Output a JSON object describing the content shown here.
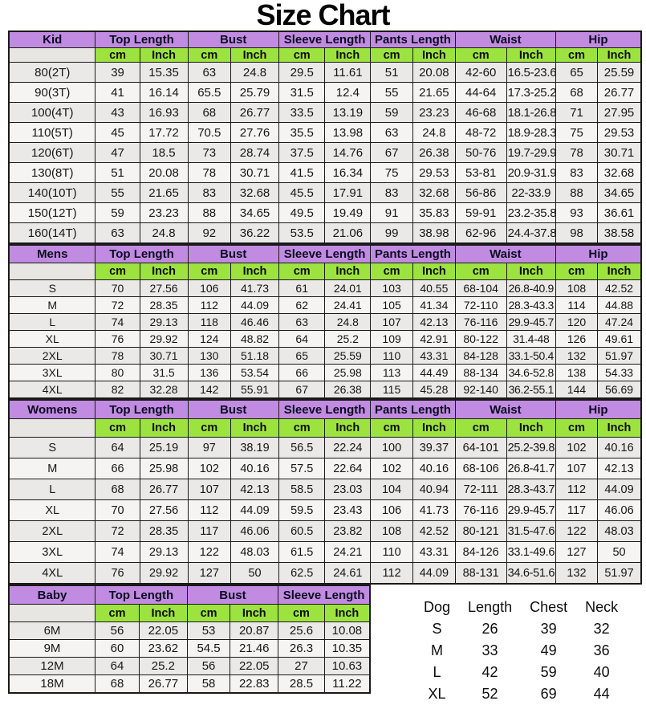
{
  "title": "Size Chart",
  "colors": {
    "header_purple": "#c18be2",
    "units_green": "#9de33f",
    "row_light": "#f5f4f2",
    "row_dark": "#eae9e7",
    "label_gray": "#e8e6e3",
    "grid_border": "#1a1a1a"
  },
  "chart_data": {
    "type": "table",
    "title": "Size Chart",
    "units": [
      "cm",
      "Inch"
    ],
    "sections": [
      {
        "id": "kid",
        "label": "Kid",
        "groups": [
          "Top Length",
          "Bust",
          "Sleeve Length",
          "Pants Length",
          "Waist",
          "Hip"
        ],
        "rows": [
          {
            "size": "80(2T)",
            "values": [
              "39",
              "15.35",
              "63",
              "24.8",
              "29.5",
              "11.61",
              "51",
              "20.08",
              "42-60",
              "16.5-23.6",
              "65",
              "25.59"
            ]
          },
          {
            "size": "90(3T)",
            "values": [
              "41",
              "16.14",
              "65.5",
              "25.79",
              "31.5",
              "12.4",
              "55",
              "21.65",
              "44-64",
              "17.3-25.2",
              "68",
              "26.77"
            ]
          },
          {
            "size": "100(4T)",
            "values": [
              "43",
              "16.93",
              "68",
              "26.77",
              "33.5",
              "13.19",
              "59",
              "23.23",
              "46-68",
              "18.1-26.8",
              "71",
              "27.95"
            ]
          },
          {
            "size": "110(5T)",
            "values": [
              "45",
              "17.72",
              "70.5",
              "27.76",
              "35.5",
              "13.98",
              "63",
              "24.8",
              "48-72",
              "18.9-28.3",
              "75",
              "29.53"
            ]
          },
          {
            "size": "120(6T)",
            "values": [
              "47",
              "18.5",
              "73",
              "28.74",
              "37.5",
              "14.76",
              "67",
              "26.38",
              "50-76",
              "19.7-29.9",
              "78",
              "30.71"
            ]
          },
          {
            "size": "130(8T)",
            "values": [
              "51",
              "20.08",
              "78",
              "30.71",
              "41.5",
              "16.34",
              "75",
              "29.53",
              "53-81",
              "20.9-31.9",
              "83",
              "32.68"
            ]
          },
          {
            "size": "140(10T)",
            "values": [
              "55",
              "21.65",
              "83",
              "32.68",
              "45.5",
              "17.91",
              "83",
              "32.68",
              "56-86",
              "22-33.9",
              "88",
              "34.65"
            ]
          },
          {
            "size": "150(12T)",
            "values": [
              "59",
              "23.23",
              "88",
              "34.65",
              "49.5",
              "19.49",
              "91",
              "35.83",
              "59-91",
              "23.2-35.8",
              "93",
              "36.61"
            ]
          },
          {
            "size": "160(14T)",
            "values": [
              "63",
              "24.8",
              "92",
              "36.22",
              "53.5",
              "21.06",
              "99",
              "38.98",
              "62-96",
              "24.4-37.8",
              "98",
              "38.58"
            ]
          }
        ]
      },
      {
        "id": "mens",
        "label": "Mens",
        "groups": [
          "Top Length",
          "Bust",
          "Sleeve Length",
          "Pants Length",
          "Waist",
          "Hip"
        ],
        "rows": [
          {
            "size": "S",
            "values": [
              "70",
              "27.56",
              "106",
              "41.73",
              "61",
              "24.01",
              "103",
              "40.55",
              "68-104",
              "26.8-40.9",
              "108",
              "42.52"
            ]
          },
          {
            "size": "M",
            "values": [
              "72",
              "28.35",
              "112",
              "44.09",
              "62",
              "24.41",
              "105",
              "41.34",
              "72-110",
              "28.3-43.3",
              "114",
              "44.88"
            ]
          },
          {
            "size": "L",
            "values": [
              "74",
              "29.13",
              "118",
              "46.46",
              "63",
              "24.8",
              "107",
              "42.13",
              "76-116",
              "29.9-45.7",
              "120",
              "47.24"
            ]
          },
          {
            "size": "XL",
            "values": [
              "76",
              "29.92",
              "124",
              "48.82",
              "64",
              "25.2",
              "109",
              "42.91",
              "80-122",
              "31.4-48",
              "126",
              "49.61"
            ]
          },
          {
            "size": "2XL",
            "values": [
              "78",
              "30.71",
              "130",
              "51.18",
              "65",
              "25.59",
              "110",
              "43.31",
              "84-128",
              "33.1-50.4",
              "132",
              "51.97"
            ]
          },
          {
            "size": "3XL",
            "values": [
              "80",
              "31.5",
              "136",
              "53.54",
              "66",
              "25.98",
              "113",
              "44.49",
              "88-134",
              "34.6-52.8",
              "138",
              "54.33"
            ]
          },
          {
            "size": "4XL",
            "values": [
              "82",
              "32.28",
              "142",
              "55.91",
              "67",
              "26.38",
              "115",
              "45.28",
              "92-140",
              "36.2-55.1",
              "144",
              "56.69"
            ]
          }
        ]
      },
      {
        "id": "womens",
        "label": "Womens",
        "groups": [
          "Top Length",
          "Bust",
          "Sleeve Length",
          "Pants Length",
          "Waist",
          "Hip"
        ],
        "rows": [
          {
            "size": "S",
            "values": [
              "64",
              "25.19",
              "97",
              "38.19",
              "56.5",
              "22.24",
              "100",
              "39.37",
              "64-101",
              "25.2-39.8",
              "102",
              "40.16"
            ]
          },
          {
            "size": "M",
            "values": [
              "66",
              "25.98",
              "102",
              "40.16",
              "57.5",
              "22.64",
              "102",
              "40.16",
              "68-106",
              "26.8-41.7",
              "107",
              "42.13"
            ]
          },
          {
            "size": "L",
            "values": [
              "68",
              "26.77",
              "107",
              "42.13",
              "58.5",
              "23.03",
              "104",
              "40.94",
              "72-111",
              "28.3-43.7",
              "112",
              "44.09"
            ]
          },
          {
            "size": "XL",
            "values": [
              "70",
              "27.56",
              "112",
              "44.09",
              "59.5",
              "23.43",
              "106",
              "41.73",
              "76-116",
              "29.9-45.7",
              "117",
              "46.06"
            ]
          },
          {
            "size": "2XL",
            "values": [
              "72",
              "28.35",
              "117",
              "46.06",
              "60.5",
              "23.82",
              "108",
              "42.52",
              "80-121",
              "31.5-47.6",
              "122",
              "48.03"
            ]
          },
          {
            "size": "3XL",
            "values": [
              "74",
              "29.13",
              "122",
              "48.03",
              "61.5",
              "24.21",
              "110",
              "43.31",
              "84-126",
              "33.1-49.6",
              "127",
              "50"
            ]
          },
          {
            "size": "4XL",
            "values": [
              "76",
              "29.92",
              "127",
              "50",
              "62.5",
              "24.61",
              "112",
              "44.09",
              "88-131",
              "34.6-51.6",
              "132",
              "51.97"
            ]
          }
        ]
      },
      {
        "id": "baby",
        "label": "Baby",
        "groups": [
          "Top Length",
          "Bust",
          "Sleeve Length"
        ],
        "rows": [
          {
            "size": "6M",
            "values": [
              "56",
              "22.05",
              "53",
              "20.87",
              "25.6",
              "10.08"
            ]
          },
          {
            "size": "9M",
            "values": [
              "60",
              "23.62",
              "54.5",
              "21.46",
              "26.3",
              "10.35"
            ]
          },
          {
            "size": "12M",
            "values": [
              "64",
              "25.2",
              "56",
              "22.05",
              "27",
              "10.63"
            ]
          },
          {
            "size": "18M",
            "values": [
              "68",
              "26.77",
              "58",
              "22.83",
              "28.5",
              "11.22"
            ]
          }
        ]
      }
    ],
    "dog_table": {
      "headers": [
        "Dog",
        "Length",
        "Chest",
        "Neck"
      ],
      "rows": [
        {
          "size": "S",
          "values": [
            "26",
            "39",
            "32"
          ]
        },
        {
          "size": "M",
          "values": [
            "33",
            "49",
            "36"
          ]
        },
        {
          "size": "L",
          "values": [
            "42",
            "59",
            "40"
          ]
        },
        {
          "size": "XL",
          "values": [
            "52",
            "69",
            "44"
          ]
        }
      ]
    }
  }
}
